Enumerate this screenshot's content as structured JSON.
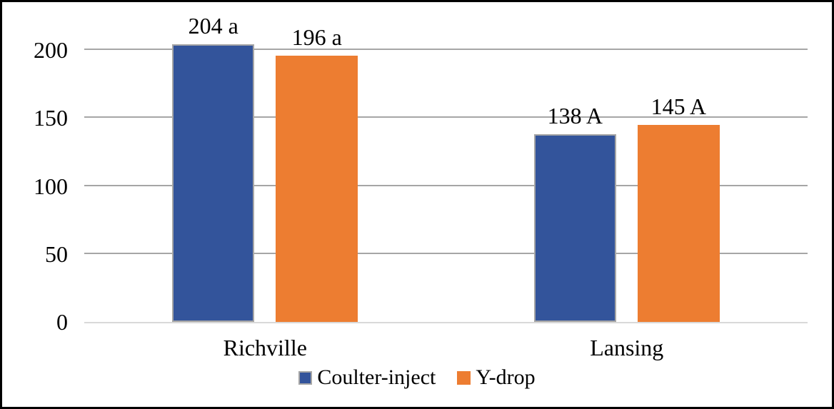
{
  "chart_data": {
    "type": "bar",
    "categories": [
      "Richville",
      "Lansing"
    ],
    "series": [
      {
        "name": "Coulter-inject",
        "color": "#33549B",
        "border_color": "#A6A6A6",
        "values": [
          204,
          138
        ],
        "data_labels": [
          "204 a",
          "138 A"
        ]
      },
      {
        "name": "Y-drop",
        "color": "#ED7D31",
        "border_color": "",
        "values": [
          196,
          145
        ],
        "data_labels": [
          "196 a",
          "145 A"
        ]
      }
    ],
    "yticks": [
      0,
      50,
      100,
      150,
      200
    ],
    "ylim": [
      0,
      220
    ],
    "title": "",
    "xlabel": "",
    "ylabel": "",
    "grid": "horizontal",
    "gridline_color": "#A6A6A6",
    "axis_line_color": "#D9D9D9",
    "text_color": "#000000",
    "legend_position": "bottom",
    "frame_border_color": "#000000",
    "background_color": "#FFFFFF"
  }
}
